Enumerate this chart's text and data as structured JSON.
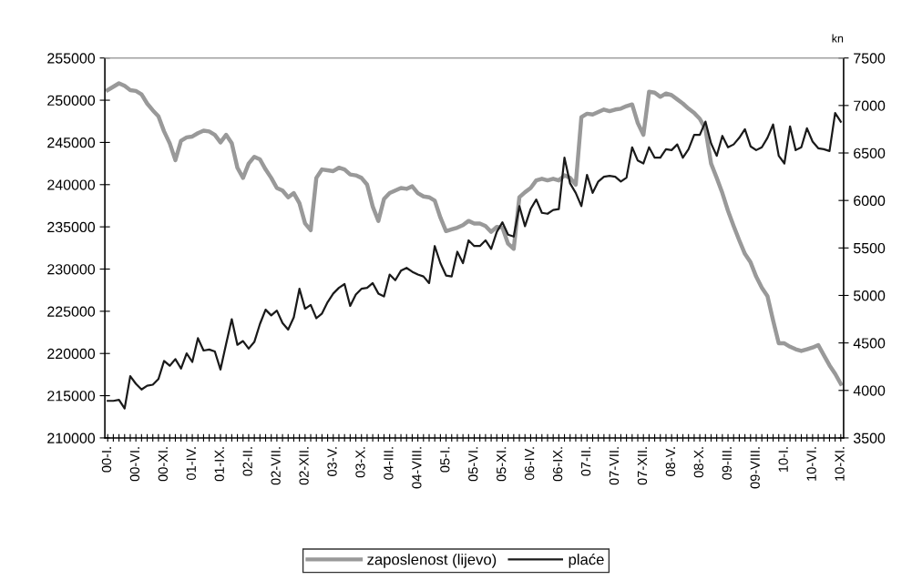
{
  "chart_data": {
    "type": "line",
    "categories": [
      "00-I.",
      null,
      null,
      null,
      null,
      "00-VI.",
      null,
      null,
      null,
      null,
      "00-XI.",
      null,
      null,
      null,
      null,
      "01-IV.",
      null,
      null,
      null,
      null,
      "01-IX.",
      null,
      null,
      null,
      null,
      "02-II.",
      null,
      null,
      null,
      null,
      "02-VII.",
      null,
      null,
      null,
      null,
      "02-XII.",
      null,
      null,
      null,
      null,
      "03-V.",
      null,
      null,
      null,
      null,
      "03-X.",
      null,
      null,
      null,
      null,
      "04-III.",
      null,
      null,
      null,
      null,
      "04-VIII.",
      null,
      null,
      null,
      null,
      "05-I.",
      null,
      null,
      null,
      null,
      "05-VI.",
      null,
      null,
      null,
      null,
      "05-XI.",
      null,
      null,
      null,
      null,
      "06-IV.",
      null,
      null,
      null,
      null,
      "06-IX.",
      null,
      null,
      null,
      null,
      "07-II.",
      null,
      null,
      null,
      null,
      "07-VII.",
      null,
      null,
      null,
      null,
      "07-XII.",
      null,
      null,
      null,
      null,
      "08-V.",
      null,
      null,
      null,
      null,
      "08-X.",
      null,
      null,
      null,
      null,
      "09-III.",
      null,
      null,
      null,
      null,
      "09-VIII.",
      null,
      null,
      null,
      null,
      "10-I.",
      null,
      null,
      null,
      null,
      "10-VI.",
      null,
      null,
      null,
      null,
      "10-XI."
    ],
    "series": [
      {
        "name": "zaposlenost (lijevo)",
        "color": "#999999",
        "values": [
          251200,
          251600,
          252000,
          251700,
          251200,
          251100,
          250700,
          249600,
          248800,
          248100,
          246300,
          244900,
          242900,
          245200,
          245600,
          245700,
          246100,
          246400,
          246300,
          245900,
          245000,
          245900,
          244900,
          242000,
          240800,
          242500,
          243300,
          243000,
          241800,
          240800,
          239600,
          239300,
          238500,
          239000,
          237800,
          235400,
          234600,
          240800,
          241800,
          241700,
          241600,
          242000,
          241800,
          241200,
          241100,
          240800,
          240000,
          237400,
          235700,
          238300,
          239000,
          239300,
          239600,
          239500,
          239800,
          239000,
          238600,
          238500,
          238100,
          236100,
          234500,
          234700,
          234900,
          235200,
          235700,
          235400,
          235400,
          235100,
          234400,
          235000,
          234900,
          233000,
          232400,
          238500,
          239100,
          239600,
          240500,
          240700,
          240500,
          240700,
          240500,
          241100,
          240800,
          240000,
          248000,
          248400,
          248300,
          248600,
          248900,
          248700,
          248900,
          249000,
          249300,
          249500,
          247300,
          245900,
          251000,
          250900,
          250400,
          250800,
          250600,
          250100,
          249600,
          249000,
          248500,
          247800,
          246600,
          242500,
          240800,
          239000,
          236900,
          235100,
          233400,
          231800,
          230800,
          229100,
          227800,
          226800,
          223900,
          221200,
          221200,
          220800,
          220500,
          220300,
          220500,
          220700,
          221000,
          219800,
          218600,
          217600,
          216400
        ]
      },
      {
        "name": "plaće",
        "color": "#1a1a1a",
        "axis": "y2",
        "values": [
          3890,
          3890,
          3900,
          3810,
          4150,
          4070,
          4010,
          4050,
          4060,
          4120,
          4310,
          4260,
          4330,
          4230,
          4390,
          4300,
          4550,
          4420,
          4430,
          4410,
          4220,
          4490,
          4750,
          4480,
          4520,
          4440,
          4510,
          4700,
          4850,
          4790,
          4840,
          4710,
          4640,
          4770,
          5070,
          4860,
          4900,
          4760,
          4810,
          4930,
          5020,
          5080,
          5120,
          4890,
          5010,
          5070,
          5080,
          5130,
          5020,
          4990,
          5220,
          5160,
          5260,
          5290,
          5250,
          5220,
          5200,
          5130,
          5520,
          5340,
          5210,
          5200,
          5460,
          5340,
          5580,
          5520,
          5520,
          5580,
          5490,
          5670,
          5770,
          5640,
          5620,
          5940,
          5730,
          5910,
          6010,
          5870,
          5860,
          5900,
          5910,
          6450,
          6180,
          6080,
          5940,
          6270,
          6080,
          6200,
          6250,
          6260,
          6250,
          6200,
          6240,
          6560,
          6420,
          6390,
          6560,
          6450,
          6450,
          6540,
          6530,
          6590,
          6450,
          6540,
          6690,
          6690,
          6830,
          6600,
          6470,
          6680,
          6560,
          6590,
          6660,
          6750,
          6570,
          6530,
          6560,
          6660,
          6800,
          6470,
          6390,
          6780,
          6530,
          6560,
          6760,
          6620,
          6550,
          6540,
          6520,
          6920,
          6830
        ]
      }
    ],
    "ylim": [
      210000,
      255000
    ],
    "yticks": [
      210000,
      215000,
      220000,
      225000,
      230000,
      235000,
      240000,
      245000,
      250000,
      255000
    ],
    "y2lim": [
      3500,
      7500
    ],
    "y2ticks": [
      3500,
      4000,
      4500,
      5000,
      5500,
      6000,
      6500,
      7000,
      7500
    ],
    "y2label": "kn",
    "legend": "bottom",
    "grid": false,
    "marker": "none",
    "line_style": "solid"
  }
}
